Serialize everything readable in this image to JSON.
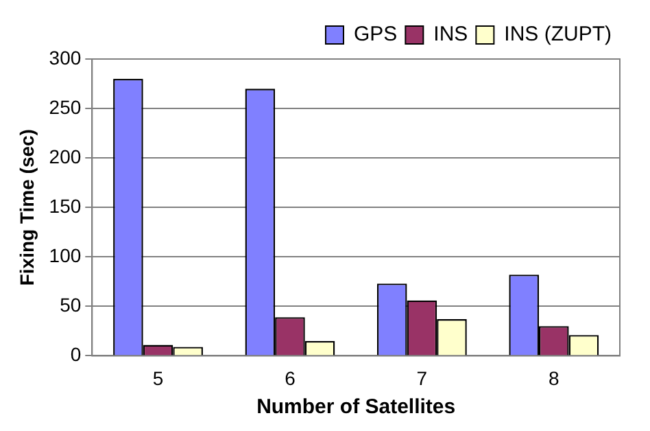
{
  "chart_data": {
    "type": "bar",
    "xlabel": "Number of Satellites",
    "ylabel": "Fixing Time (sec)",
    "categories": [
      "5",
      "6",
      "7",
      "8"
    ],
    "series": [
      {
        "name": "GPS",
        "color": "#8080ff",
        "values": [
          280,
          270,
          73,
          82
        ]
      },
      {
        "name": "INS",
        "color": "#993366",
        "values": [
          11,
          39,
          56,
          30
        ]
      },
      {
        "name": "INS (ZUPT)",
        "color": "#ffffcc",
        "values": [
          9,
          15,
          37,
          21
        ]
      }
    ],
    "ylim": [
      0,
      300
    ],
    "yticks": [
      0,
      50,
      100,
      150,
      200,
      250,
      300
    ],
    "grid": "y",
    "legend": "top right"
  }
}
